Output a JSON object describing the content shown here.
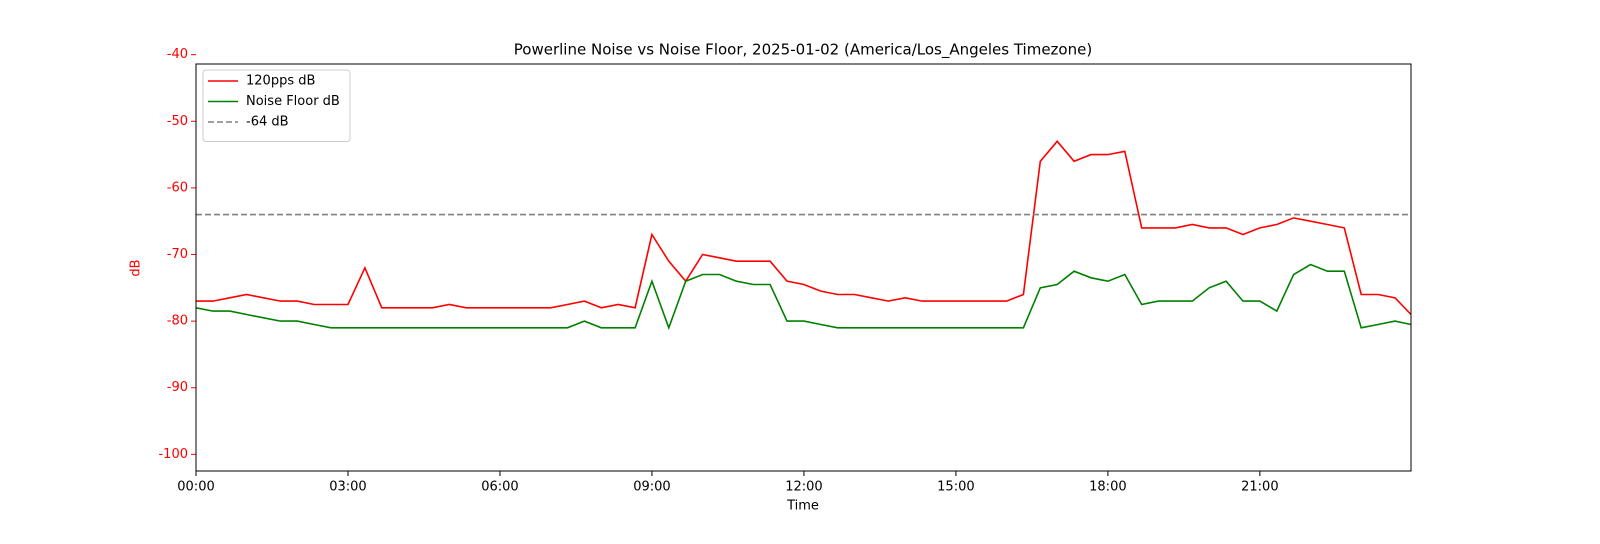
{
  "chart_data": {
    "type": "line",
    "title": "Powerline Noise vs Noise Floor, 2025-01-02 (America/Los_Angeles Timezone)",
    "x_label": "Time",
    "y_label": "dB",
    "y_axis_color": "#ff0000",
    "x": [
      "00:00",
      "00:20",
      "00:40",
      "01:00",
      "01:20",
      "01:40",
      "02:00",
      "02:20",
      "02:40",
      "03:00",
      "03:20",
      "03:40",
      "04:00",
      "04:20",
      "04:40",
      "05:00",
      "05:20",
      "05:40",
      "06:00",
      "06:20",
      "06:40",
      "07:00",
      "07:20",
      "07:40",
      "08:00",
      "08:20",
      "08:40",
      "09:00",
      "09:20",
      "09:40",
      "10:00",
      "10:20",
      "10:40",
      "11:00",
      "11:20",
      "11:40",
      "12:00",
      "12:20",
      "12:40",
      "13:00",
      "13:20",
      "13:40",
      "14:00",
      "14:20",
      "14:40",
      "15:00",
      "15:20",
      "15:40",
      "16:00",
      "16:20",
      "16:40",
      "17:00",
      "17:20",
      "17:40",
      "18:00",
      "18:20",
      "18:40",
      "19:00",
      "19:20",
      "19:40",
      "20:00",
      "20:20",
      "20:40",
      "21:00",
      "21:20",
      "21:40",
      "22:00",
      "22:20",
      "22:40",
      "23:00",
      "23:20",
      "23:40",
      "23:59"
    ],
    "series": [
      {
        "name": "120pps dB",
        "color": "#ff0000",
        "values": [
          -77,
          -77,
          -76.5,
          -76,
          -76.5,
          -77,
          -77,
          -77.5,
          -77.5,
          -77.5,
          -72,
          -78,
          -78,
          -78,
          -78,
          -77.5,
          -78,
          -78,
          -78,
          -78,
          -78,
          -78,
          -77.5,
          -77,
          -78,
          -77.5,
          -78,
          -67,
          -71,
          -74,
          -70,
          -70.5,
          -71,
          -71,
          -71,
          -74,
          -74.5,
          -75.5,
          -76,
          -76,
          -76.5,
          -77,
          -76.5,
          -77,
          -77,
          -77,
          -77,
          -77,
          -77,
          -76,
          -56,
          -53,
          -56,
          -55,
          -55,
          -54.5,
          -66,
          -66,
          -66,
          -65.5,
          -66,
          -66,
          -67,
          -66,
          -65.5,
          -64.5,
          -65,
          -65.5,
          -66,
          -76,
          -76,
          -76.5,
          -79
        ]
      },
      {
        "name": "Noise Floor dB",
        "color": "#008000",
        "values": [
          -78,
          -78.5,
          -78.5,
          -79,
          -79.5,
          -80,
          -80,
          -80.5,
          -81,
          -81,
          -81,
          -81,
          -81,
          -81,
          -81,
          -81,
          -81,
          -81,
          -81,
          -81,
          -81,
          -81,
          -81,
          -80,
          -81,
          -81,
          -81,
          -74,
          -81,
          -74,
          -73,
          -73,
          -74,
          -74.5,
          -74.5,
          -80,
          -80,
          -80.5,
          -81,
          -81,
          -81,
          -81,
          -81,
          -81,
          -81,
          -81,
          -81,
          -81,
          -81,
          -81,
          -75,
          -74.5,
          -72.5,
          -73.5,
          -74,
          -73,
          -77.5,
          -77,
          -77,
          -77,
          -75,
          -74,
          -77,
          -77,
          -78.5,
          -73,
          -71.5,
          -72.5,
          -72.5,
          -81,
          -80.5,
          -80,
          -80.5
        ]
      }
    ],
    "reference_lines": [
      {
        "name": "-64 dB",
        "value": -64,
        "color": "#808080"
      }
    ],
    "xlim": [
      "00:00",
      "23:59"
    ],
    "xticks": [
      "00:00",
      "03:00",
      "06:00",
      "09:00",
      "12:00",
      "15:00",
      "18:00",
      "21:00"
    ],
    "ylim": [
      -102.5,
      -41.4
    ],
    "yticks": [
      -100,
      -90,
      -80,
      -70,
      -60,
      -50,
      -40
    ],
    "legend": "upper left"
  }
}
